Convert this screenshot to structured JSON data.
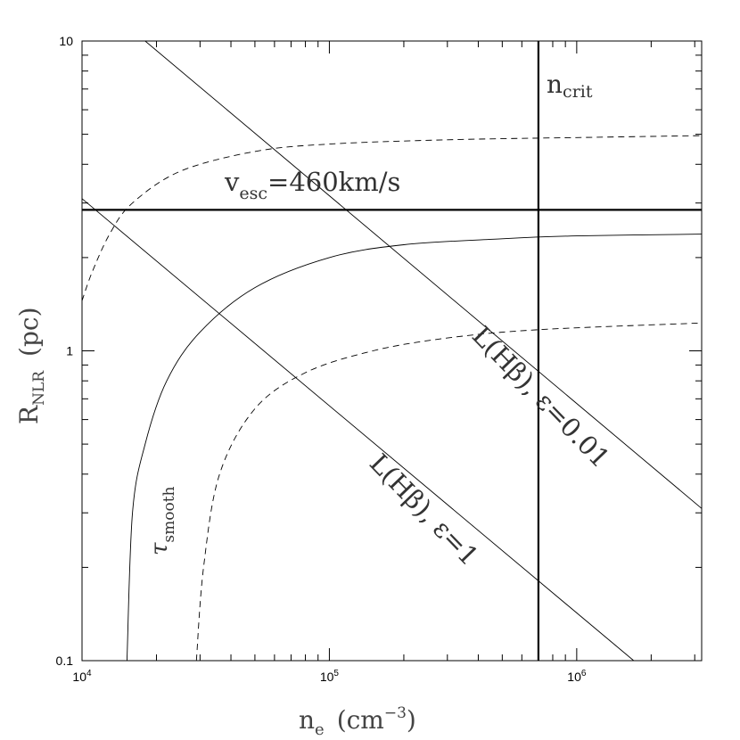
{
  "chart_data": {
    "type": "line",
    "x_scale": "log",
    "y_scale": "log",
    "xlim": [
      10000,
      3200000
    ],
    "ylim": [
      0.1,
      10
    ],
    "x_ticks": [
      {
        "value": 10000,
        "base": "10",
        "exp": "4"
      },
      {
        "value": 100000,
        "base": "10",
        "exp": "5"
      },
      {
        "value": 1000000,
        "base": "10",
        "exp": "6"
      }
    ],
    "y_ticks": [
      {
        "value": 0.1,
        "label": "0.1"
      },
      {
        "value": 1,
        "label": "1"
      },
      {
        "value": 10,
        "label": "10"
      }
    ],
    "xlabel": {
      "base": "n",
      "sub": "e",
      "unit_pre": "(cm",
      "unit_sup": "−3",
      "unit_post": ")"
    },
    "ylabel": {
      "base": "R",
      "sub": "NLR",
      "unit": "(pc)"
    },
    "grid": false,
    "series": [
      {
        "style": "thick",
        "points": [
          [
            10000,
            2.85
          ],
          [
            3200000,
            2.85
          ]
        ]
      },
      {
        "style": "thick",
        "points": [
          [
            700000,
            0.1
          ],
          [
            700000,
            10
          ]
        ]
      },
      {
        "style": "thin",
        "points": [
          [
            18000,
            10
          ],
          [
            3200000,
            0.31
          ]
        ]
      },
      {
        "style": "thin",
        "points": [
          [
            10000,
            3.1
          ],
          [
            1700000,
            0.1
          ]
        ]
      },
      {
        "style": "thin",
        "points": [
          [
            15200,
            0.1
          ],
          [
            16000,
            0.3
          ],
          [
            18000,
            0.5
          ],
          [
            22000,
            0.8
          ],
          [
            30000,
            1.15
          ],
          [
            50000,
            1.6
          ],
          [
            100000,
            2.0
          ],
          [
            200000,
            2.2
          ],
          [
            500000,
            2.3
          ],
          [
            1000000,
            2.35
          ],
          [
            3200000,
            2.38
          ]
        ]
      },
      {
        "style": "dashed",
        "points": [
          [
            10000,
            1.45
          ],
          [
            11000,
            1.8
          ],
          [
            13000,
            2.4
          ],
          [
            16000,
            3.0
          ],
          [
            25000,
            3.8
          ],
          [
            50000,
            4.4
          ],
          [
            100000,
            4.65
          ],
          [
            300000,
            4.8
          ],
          [
            1000000,
            4.88
          ],
          [
            3200000,
            4.95
          ]
        ]
      },
      {
        "style": "dashed",
        "points": [
          [
            29000,
            0.1
          ],
          [
            31000,
            0.2
          ],
          [
            36000,
            0.4
          ],
          [
            50000,
            0.65
          ],
          [
            80000,
            0.85
          ],
          [
            150000,
            1.0
          ],
          [
            300000,
            1.1
          ],
          [
            700000,
            1.17
          ],
          [
            3200000,
            1.23
          ]
        ]
      }
    ],
    "annotations": [
      {
        "id": "ncrit",
        "base": "n",
        "sub": "crit"
      },
      {
        "id": "vesc",
        "base": "v",
        "sub": "esc",
        "rest": "=460km/s"
      },
      {
        "id": "lhb001",
        "text": "L(Hβ), ε=0.01"
      },
      {
        "id": "lhb1",
        "text": "L(Hβ), ε=1"
      },
      {
        "id": "tau",
        "base": "τ",
        "sub": "smooth"
      }
    ]
  }
}
